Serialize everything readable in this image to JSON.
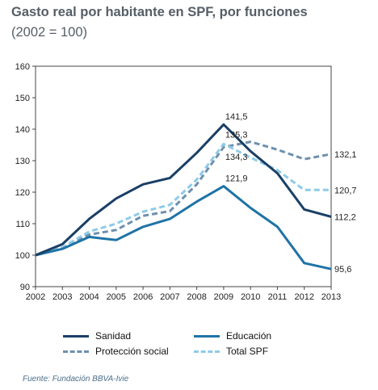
{
  "header": {
    "title": "Gasto real por habitante en SPF, por funciones",
    "subtitle": "(2002 = 100)"
  },
  "source": "Fuente: Fundación BBVA-Ivie",
  "chart_data": {
    "type": "line",
    "title": "Gasto real por habitante en SPF, por funciones",
    "subtitle": "(2002 = 100)",
    "x": [
      "2002",
      "2003",
      "2004",
      "2005",
      "2006",
      "2007",
      "2008",
      "2009",
      "2010",
      "2011",
      "2012",
      "2013"
    ],
    "ylim": [
      90,
      160
    ],
    "yticks": [
      90,
      100,
      110,
      120,
      130,
      140,
      150,
      160
    ],
    "grid": false,
    "legend_position": "bottom",
    "series": [
      {
        "name": "Sanidad",
        "color": "#1a3f66",
        "dash": "solid",
        "values": [
          100,
          103.5,
          111.5,
          118,
          122.5,
          124.5,
          132.5,
          141.5,
          133,
          126,
          114.5,
          112.2
        ]
      },
      {
        "name": "Educación",
        "color": "#1f73a6",
        "dash": "solid",
        "values": [
          100,
          102,
          105.8,
          104.8,
          109,
          111.5,
          117,
          121.9,
          115,
          109,
          97.5,
          95.6
        ]
      },
      {
        "name": "Protección social",
        "color": "#6f90ad",
        "dash": "dashed",
        "values": [
          100,
          102.5,
          106.5,
          108,
          112.5,
          114,
          122.5,
          134.3,
          136,
          133.5,
          130.5,
          132.1
        ]
      },
      {
        "name": "Total SPF",
        "color": "#8ecbe8",
        "dash": "dashed",
        "values": [
          100,
          102.5,
          107.5,
          110,
          113.8,
          116,
          124,
          135.3,
          131,
          127,
          120.7,
          120.7
        ]
      }
    ],
    "data_labels": [
      {
        "text": "141,5",
        "series": 0,
        "index": 7
      },
      {
        "text": "135,3",
        "series": 3,
        "index": 7
      },
      {
        "text": "134,3",
        "series": 2,
        "index": 7
      },
      {
        "text": "121,9",
        "series": 1,
        "index": 7
      },
      {
        "text": "132,1",
        "series": 2,
        "index": 11
      },
      {
        "text": "120,7",
        "series": 3,
        "index": 11
      },
      {
        "text": "112,2",
        "series": 0,
        "index": 11
      },
      {
        "text": "95,6",
        "series": 1,
        "index": 11
      }
    ]
  }
}
